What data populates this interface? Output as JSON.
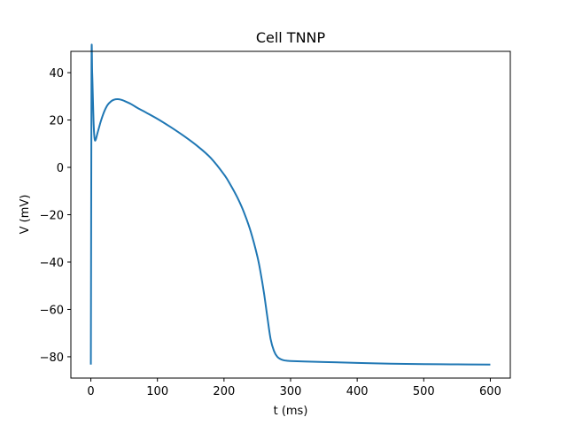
{
  "chart_data": {
    "type": "line",
    "title": "Cell TNNP",
    "xlabel": "t (ms)",
    "ylabel": "V (mV)",
    "xlim": [
      -30,
      630
    ],
    "ylim": [
      -89,
      49
    ],
    "xticks": [
      0,
      100,
      200,
      300,
      400,
      500,
      600
    ],
    "yticks": [
      40,
      20,
      0,
      -20,
      -40,
      -60,
      -80
    ],
    "grid": false,
    "series": [
      {
        "color": "#1f77b4",
        "x": [
          0,
          1,
          2,
          3,
          4,
          5,
          6,
          7,
          8,
          10,
          12,
          15,
          20,
          25,
          30,
          35,
          40,
          45,
          50,
          60,
          70,
          80,
          100,
          120,
          140,
          160,
          180,
          200,
          210,
          220,
          230,
          240,
          250,
          255,
          260,
          265,
          270,
          275,
          280,
          285,
          290,
          295,
          300,
          320,
          350,
          400,
          450,
          500,
          550,
          600
        ],
        "y": [
          -83.3,
          43.0,
          40.0,
          30.0,
          20.0,
          14.0,
          11.5,
          11.5,
          12.3,
          14.5,
          16.5,
          19.5,
          23.5,
          26.3,
          27.8,
          28.6,
          28.8,
          28.6,
          28.1,
          26.8,
          25.1,
          23.6,
          20.5,
          17.0,
          13.2,
          9.0,
          4.0,
          -3.0,
          -7.5,
          -12.7,
          -19.0,
          -27.0,
          -37.5,
          -44.5,
          -53.0,
          -63.0,
          -72.5,
          -77.5,
          -80.0,
          -81.0,
          -81.5,
          -81.7,
          -81.8,
          -82.0,
          -82.2,
          -82.6,
          -82.9,
          -83.1,
          -83.2,
          -83.3
        ]
      }
    ]
  }
}
